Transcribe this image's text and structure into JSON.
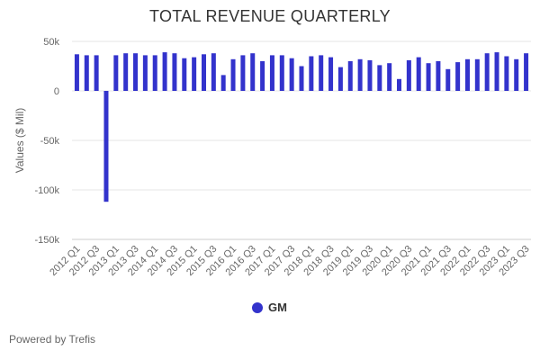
{
  "colors": {
    "series": "#3333cc",
    "grid": "#e6e6e6",
    "axis_text": "#666666",
    "baseline": "#cccccc"
  },
  "credit": "Powered by Trefis",
  "chart_data": {
    "type": "bar",
    "title": "TOTAL REVENUE QUARTERLY",
    "xlabel": "",
    "ylabel": "Values ($ Mil)",
    "ylim": [
      -150000,
      50000
    ],
    "yticks": [
      50000,
      0,
      -50000,
      -100000,
      -150000
    ],
    "ytick_labels": [
      "50k",
      "0",
      "-50k",
      "-100k",
      "-150k"
    ],
    "grid": true,
    "legend_position": "bottom-center",
    "categories": [
      "2012 Q1",
      "2012 Q2",
      "2012 Q3",
      "2012 Q4",
      "2013 Q1",
      "2013 Q2",
      "2013 Q3",
      "2013 Q4",
      "2014 Q1",
      "2014 Q2",
      "2014 Q3",
      "2014 Q4",
      "2015 Q1",
      "2015 Q2",
      "2015 Q3",
      "2015 Q4",
      "2016 Q1",
      "2016 Q2",
      "2016 Q3",
      "2016 Q4",
      "2017 Q1",
      "2017 Q2",
      "2017 Q3",
      "2017 Q4",
      "2018 Q1",
      "2018 Q2",
      "2018 Q3",
      "2018 Q4",
      "2019 Q1",
      "2019 Q2",
      "2019 Q3",
      "2019 Q4",
      "2020 Q1",
      "2020 Q2",
      "2020 Q3",
      "2020 Q4",
      "2021 Q1",
      "2021 Q2",
      "2021 Q3",
      "2021 Q4",
      "2022 Q1",
      "2022 Q2",
      "2022 Q3",
      "2022 Q4",
      "2023 Q1",
      "2023 Q2",
      "2023 Q3"
    ],
    "tick_labels_shown": [
      "2012 Q1",
      "2012 Q3",
      "2013 Q1",
      "2013 Q3",
      "2014 Q1",
      "2014 Q3",
      "2015 Q1",
      "2015 Q3",
      "2016 Q1",
      "2016 Q3",
      "2017 Q1",
      "2017 Q3",
      "2018 Q1",
      "2018 Q3",
      "2019 Q1",
      "2019 Q3",
      "2020 Q1",
      "2020 Q3",
      "2021 Q1",
      "2021 Q3",
      "2022 Q1",
      "2022 Q3",
      "2023 Q1",
      "2023 Q3"
    ],
    "series": [
      {
        "name": "GM",
        "values": [
          37000,
          36000,
          36000,
          -112000,
          36000,
          38000,
          38000,
          36000,
          36000,
          39000,
          38000,
          33000,
          34000,
          37000,
          38000,
          16000,
          32000,
          36000,
          38000,
          30000,
          36000,
          36000,
          33000,
          25000,
          35000,
          36000,
          34000,
          24000,
          30000,
          32000,
          31000,
          26000,
          28000,
          12000,
          31000,
          34000,
          28000,
          30000,
          22000,
          29000,
          32000,
          32000,
          38000,
          39000,
          35000,
          32000,
          38000
        ]
      }
    ]
  }
}
